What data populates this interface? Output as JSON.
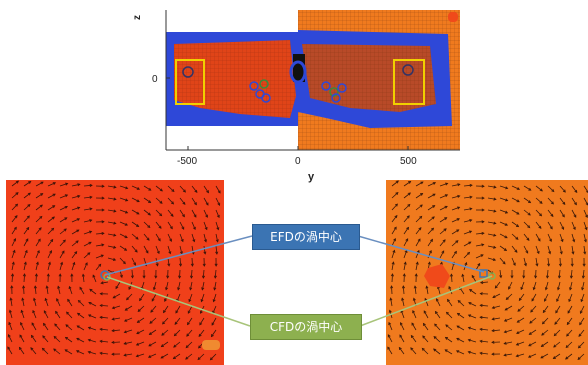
{
  "top_plot": {
    "axis_y_label": "z",
    "axis_x_label": "y",
    "y_tick": "0",
    "x_ticks": [
      "-500",
      "0",
      "500"
    ]
  },
  "callouts": {
    "efd_label": "EFDの渦中心",
    "cfd_label": "CFDの渦中心"
  },
  "colors": {
    "efd_box": "#3b74b3",
    "cfd_box": "#8db04f",
    "left_field": "#f0401a",
    "right_field": "#f07a1e",
    "wake": "#2e48d8",
    "roi_box": "#f0d000"
  }
}
